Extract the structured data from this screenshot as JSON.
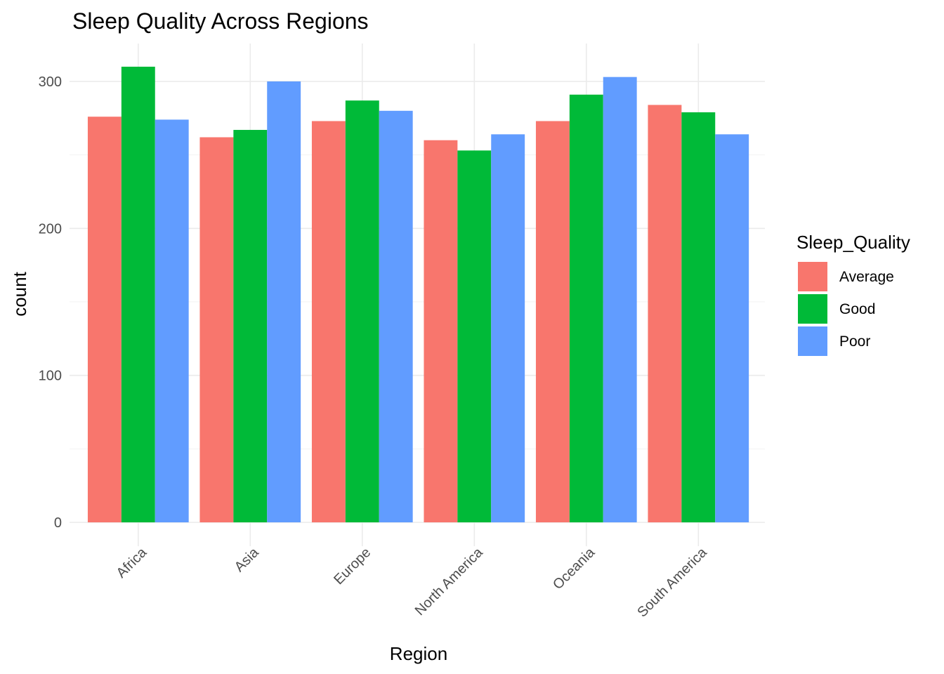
{
  "chart_data": {
    "type": "bar",
    "title": "Sleep Quality Across Regions",
    "xlabel": "Region",
    "ylabel": "count",
    "categories": [
      "Africa",
      "Asia",
      "Europe",
      "North America",
      "Oceania",
      "South America"
    ],
    "series": [
      {
        "name": "Average",
        "color": "#F8766D",
        "values": [
          276,
          262,
          273,
          260,
          273,
          284
        ]
      },
      {
        "name": "Good",
        "color": "#00BA38",
        "values": [
          310,
          267,
          287,
          253,
          291,
          279
        ]
      },
      {
        "name": "Poor",
        "color": "#619CFF",
        "values": [
          274,
          300,
          280,
          264,
          303,
          264
        ]
      }
    ],
    "ylim": [
      0,
      326
    ],
    "yticks": [
      0,
      100,
      200,
      300
    ],
    "grid": true,
    "legend": {
      "title": "Sleep_Quality",
      "position": "right"
    }
  }
}
